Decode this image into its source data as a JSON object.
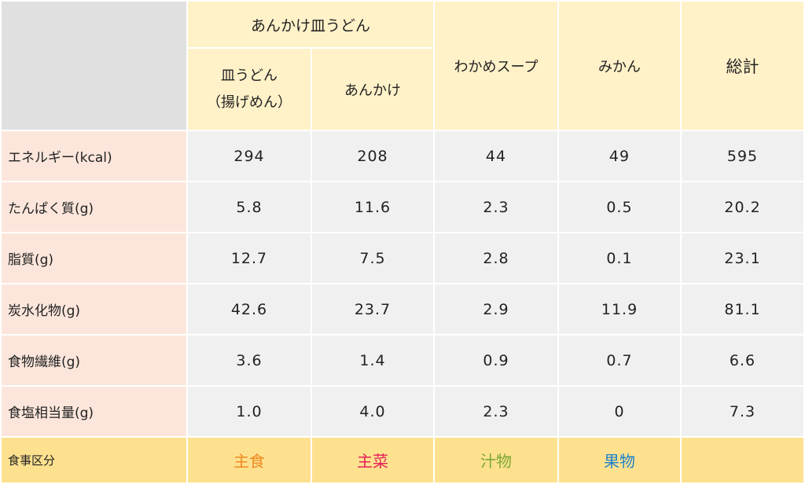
{
  "header": {
    "group_title": "あんかけ皿うどん",
    "columns": [
      {
        "line1": "皿うどん",
        "line2": "（揚げめん）"
      },
      {
        "label": "あんかけ"
      },
      {
        "label": "わかめスープ"
      },
      {
        "label": "みかん"
      },
      {
        "label": "総計"
      }
    ]
  },
  "rows": [
    {
      "label": "エネルギー(kcal)",
      "values": [
        "294",
        "208",
        "44",
        "49",
        "595"
      ]
    },
    {
      "label": "たんぱく質(g)",
      "values": [
        "5.8",
        "11.6",
        "2.3",
        "0.5",
        "20.2"
      ]
    },
    {
      "label": "脂質(g)",
      "values": [
        "12.7",
        "7.5",
        "2.8",
        "0.1",
        "23.1"
      ]
    },
    {
      "label": "炭水化物(g)",
      "values": [
        "42.6",
        "23.7",
        "2.9",
        "11.9",
        "81.1"
      ]
    },
    {
      "label": "食物繊維(g)",
      "values": [
        "3.6",
        "1.4",
        "0.9",
        "0.7",
        "6.6"
      ]
    },
    {
      "label": "食塩相当量(g)",
      "values": [
        "1.0",
        "4.0",
        "2.3",
        "0",
        "7.3"
      ]
    }
  ],
  "footer": {
    "label": "食事区分",
    "categories": [
      {
        "text": "主食",
        "color": "#f08a24"
      },
      {
        "text": "主菜",
        "color": "#e6205a"
      },
      {
        "text": "汁物",
        "color": "#7aa832"
      },
      {
        "text": "果物",
        "color": "#1f83c8"
      },
      {
        "text": "",
        "color": "#222222"
      }
    ]
  }
}
